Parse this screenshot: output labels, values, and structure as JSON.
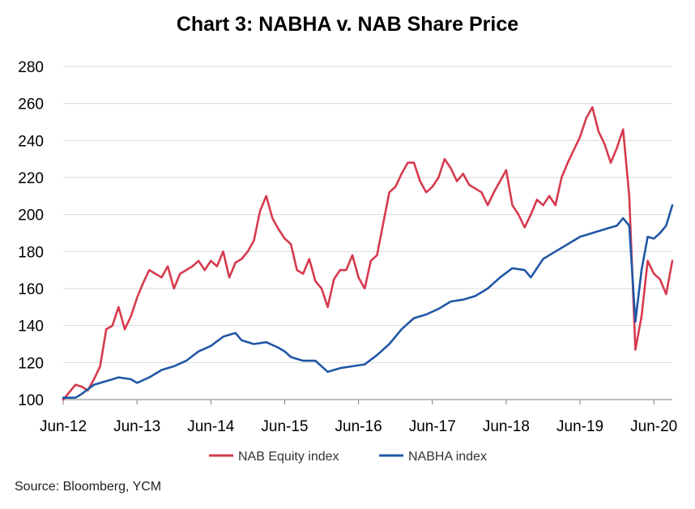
{
  "chart_data": {
    "type": "line",
    "title": "Chart 3: NABHA v. NAB Share Price",
    "xlabel": "",
    "ylabel": "",
    "ylim": [
      100,
      280
    ],
    "yticks": [
      100,
      120,
      140,
      160,
      180,
      200,
      220,
      240,
      260,
      280
    ],
    "xlim": [
      "2012-06",
      "2020-09"
    ],
    "xticks": [
      "Jun-12",
      "Jun-13",
      "Jun-14",
      "Jun-15",
      "Jun-16",
      "Jun-17",
      "Jun-18",
      "Jun-19",
      "Jun-20"
    ],
    "grid": "horizontal",
    "legend_position": "bottom",
    "colors": {
      "nab": "#d63a4e",
      "nabha": "#2157a6"
    },
    "series": [
      {
        "name": "NAB Equity index",
        "color": "#d63a4e",
        "points": [
          [
            "2012-06",
            100
          ],
          [
            "2012-07",
            104
          ],
          [
            "2012-08",
            108
          ],
          [
            "2012-09",
            107
          ],
          [
            "2012-10",
            105
          ],
          [
            "2012-11",
            111
          ],
          [
            "2012-12",
            118
          ],
          [
            "2013-01",
            138
          ],
          [
            "2013-02",
            140
          ],
          [
            "2013-03",
            150
          ],
          [
            "2013-04",
            138
          ],
          [
            "2013-05",
            145
          ],
          [
            "2013-06",
            155
          ],
          [
            "2013-07",
            163
          ],
          [
            "2013-08",
            170
          ],
          [
            "2013-09",
            168
          ],
          [
            "2013-10",
            166
          ],
          [
            "2013-11",
            172
          ],
          [
            "2013-12",
            160
          ],
          [
            "2014-01",
            168
          ],
          [
            "2014-02",
            170
          ],
          [
            "2014-03",
            172
          ],
          [
            "2014-04",
            175
          ],
          [
            "2014-05",
            170
          ],
          [
            "2014-06",
            175
          ],
          [
            "2014-07",
            172
          ],
          [
            "2014-08",
            180
          ],
          [
            "2014-09",
            166
          ],
          [
            "2014-10",
            174
          ],
          [
            "2014-11",
            176
          ],
          [
            "2014-12",
            180
          ],
          [
            "2015-01",
            186
          ],
          [
            "2015-02",
            202
          ],
          [
            "2015-03",
            210
          ],
          [
            "2015-04",
            198
          ],
          [
            "2015-05",
            192
          ],
          [
            "2015-06",
            187
          ],
          [
            "2015-07",
            184
          ],
          [
            "2015-08",
            170
          ],
          [
            "2015-09",
            168
          ],
          [
            "2015-10",
            176
          ],
          [
            "2015-11",
            164
          ],
          [
            "2015-12",
            160
          ],
          [
            "2016-01",
            150
          ],
          [
            "2016-02",
            165
          ],
          [
            "2016-03",
            170
          ],
          [
            "2016-04",
            170
          ],
          [
            "2016-05",
            178
          ],
          [
            "2016-06",
            166
          ],
          [
            "2016-07",
            160
          ],
          [
            "2016-08",
            175
          ],
          [
            "2016-09",
            178
          ],
          [
            "2016-10",
            195
          ],
          [
            "2016-11",
            212
          ],
          [
            "2016-12",
            215
          ],
          [
            "2017-01",
            222
          ],
          [
            "2017-02",
            228
          ],
          [
            "2017-03",
            228
          ],
          [
            "2017-04",
            218
          ],
          [
            "2017-05",
            212
          ],
          [
            "2017-06",
            215
          ],
          [
            "2017-07",
            220
          ],
          [
            "2017-08",
            230
          ],
          [
            "2017-09",
            225
          ],
          [
            "2017-10",
            218
          ],
          [
            "2017-11",
            222
          ],
          [
            "2017-12",
            216
          ],
          [
            "2018-01",
            214
          ],
          [
            "2018-02",
            212
          ],
          [
            "2018-03",
            205
          ],
          [
            "2018-04",
            212
          ],
          [
            "2018-05",
            218
          ],
          [
            "2018-06",
            224
          ],
          [
            "2018-07",
            205
          ],
          [
            "2018-08",
            200
          ],
          [
            "2018-09",
            193
          ],
          [
            "2018-10",
            200
          ],
          [
            "2018-11",
            208
          ],
          [
            "2018-12",
            205
          ],
          [
            "2019-01",
            210
          ],
          [
            "2019-02",
            205
          ],
          [
            "2019-03",
            220
          ],
          [
            "2019-04",
            228
          ],
          [
            "2019-05",
            235
          ],
          [
            "2019-06",
            242
          ],
          [
            "2019-07",
            252
          ],
          [
            "2019-08",
            258
          ],
          [
            "2019-09",
            245
          ],
          [
            "2019-10",
            238
          ],
          [
            "2019-11",
            228
          ],
          [
            "2019-12",
            236
          ],
          [
            "2020-01",
            246
          ],
          [
            "2020-02",
            210
          ],
          [
            "2020-03",
            127
          ],
          [
            "2020-04",
            145
          ],
          [
            "2020-05",
            175
          ],
          [
            "2020-06",
            168
          ],
          [
            "2020-07",
            165
          ],
          [
            "2020-08",
            157
          ],
          [
            "2020-09",
            175
          ]
        ]
      },
      {
        "name": "NABHA index",
        "color": "#2157a6",
        "points": [
          [
            "2012-06",
            101
          ],
          [
            "2012-08",
            101
          ],
          [
            "2012-09",
            103
          ],
          [
            "2012-11",
            108
          ],
          [
            "2013-01",
            110
          ],
          [
            "2013-03",
            112
          ],
          [
            "2013-05",
            111
          ],
          [
            "2013-06",
            109
          ],
          [
            "2013-08",
            112
          ],
          [
            "2013-10",
            116
          ],
          [
            "2013-12",
            118
          ],
          [
            "2014-02",
            121
          ],
          [
            "2014-04",
            126
          ],
          [
            "2014-06",
            129
          ],
          [
            "2014-08",
            134
          ],
          [
            "2014-10",
            136
          ],
          [
            "2014-11",
            132
          ],
          [
            "2015-01",
            130
          ],
          [
            "2015-03",
            131
          ],
          [
            "2015-05",
            128
          ],
          [
            "2015-06",
            126
          ],
          [
            "2015-07",
            123
          ],
          [
            "2015-09",
            121
          ],
          [
            "2015-11",
            121
          ],
          [
            "2016-01",
            115
          ],
          [
            "2016-03",
            117
          ],
          [
            "2016-05",
            118
          ],
          [
            "2016-07",
            119
          ],
          [
            "2016-09",
            124
          ],
          [
            "2016-11",
            130
          ],
          [
            "2017-01",
            138
          ],
          [
            "2017-03",
            144
          ],
          [
            "2017-05",
            146
          ],
          [
            "2017-07",
            149
          ],
          [
            "2017-09",
            153
          ],
          [
            "2017-11",
            154
          ],
          [
            "2018-01",
            156
          ],
          [
            "2018-03",
            160
          ],
          [
            "2018-05",
            166
          ],
          [
            "2018-07",
            171
          ],
          [
            "2018-09",
            170
          ],
          [
            "2018-10",
            166
          ],
          [
            "2018-12",
            176
          ],
          [
            "2019-02",
            180
          ],
          [
            "2019-04",
            184
          ],
          [
            "2019-06",
            188
          ],
          [
            "2019-08",
            190
          ],
          [
            "2019-10",
            192
          ],
          [
            "2019-12",
            194
          ],
          [
            "2020-01",
            198
          ],
          [
            "2020-02",
            194
          ],
          [
            "2020-03",
            142
          ],
          [
            "2020-04",
            170
          ],
          [
            "2020-05",
            188
          ],
          [
            "2020-06",
            187
          ],
          [
            "2020-07",
            190
          ],
          [
            "2020-08",
            194
          ],
          [
            "2020-09",
            205
          ]
        ]
      }
    ]
  },
  "source": "Source: Bloomberg, YCM"
}
